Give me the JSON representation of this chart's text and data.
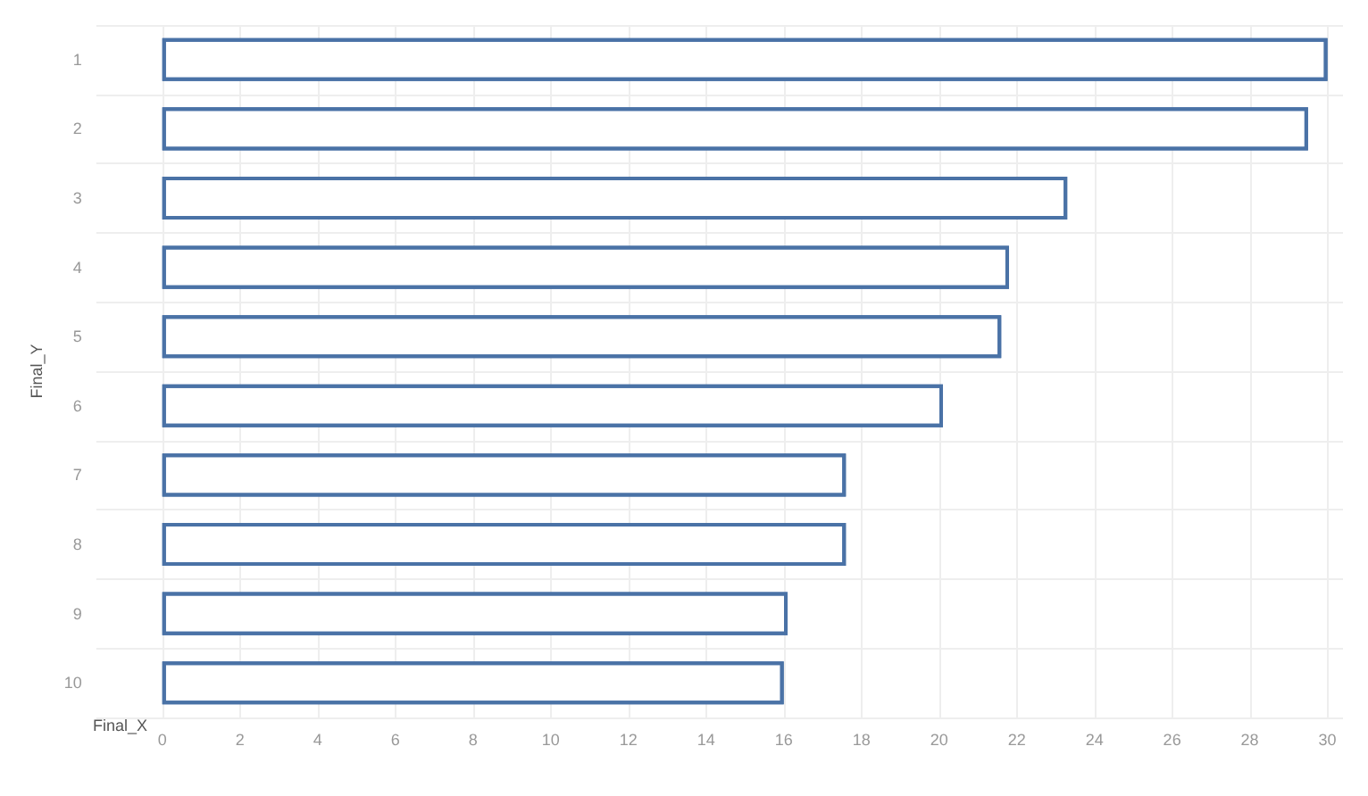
{
  "chart_data": {
    "type": "bar",
    "orientation": "horizontal",
    "xlabel": "Final_X",
    "ylabel": "Final_Y",
    "categories": [
      "1",
      "2",
      "3",
      "4",
      "5",
      "6",
      "7",
      "8",
      "9",
      "10"
    ],
    "values": [
      30.0,
      29.5,
      23.3,
      21.8,
      21.6,
      20.1,
      17.6,
      17.6,
      16.1,
      16.0
    ],
    "color": "#4a72a6",
    "xlim": [
      -1.7,
      30.4
    ],
    "xticks": [
      0,
      2,
      4,
      6,
      8,
      10,
      12,
      14,
      16,
      18,
      20,
      22,
      24,
      26,
      28,
      30
    ],
    "grid": true
  }
}
